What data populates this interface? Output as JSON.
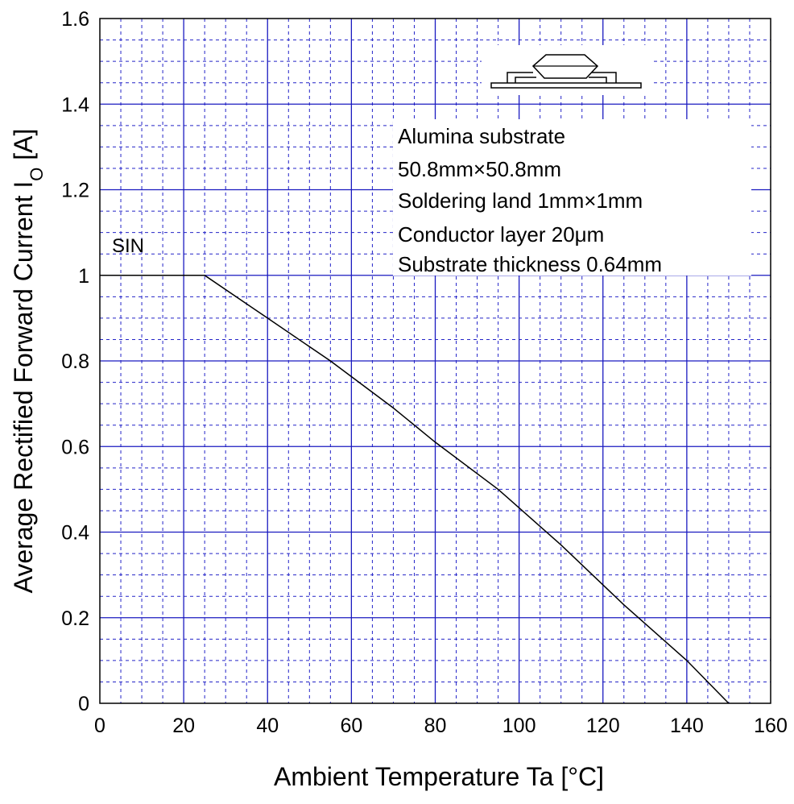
{
  "chart_data": {
    "type": "line",
    "title": "",
    "xlabel": "Ambient Temperature  Ta  [°C]",
    "ylabel_main": "Average Rectified Forward Current  I",
    "ylabel_sub": "O",
    "ylabel_unit": "  [A]",
    "xlim": [
      0,
      160
    ],
    "ylim": [
      0,
      1.6
    ],
    "x_ticks": [
      "0",
      "20",
      "40",
      "60",
      "80",
      "100",
      "120",
      "140",
      "160"
    ],
    "y_ticks": [
      "0",
      "0.2",
      "0.4",
      "0.6",
      "0.8",
      "1",
      "1.2",
      "1.4",
      "1.6"
    ],
    "grid": true,
    "series": [
      {
        "name": "SIN",
        "x": [
          0,
          25,
          40,
          55,
          70,
          80,
          95,
          110,
          125,
          140,
          150
        ],
        "y": [
          1.0,
          1.0,
          0.9,
          0.8,
          0.69,
          0.61,
          0.5,
          0.37,
          0.23,
          0.1,
          0.0
        ]
      }
    ],
    "annotations": [
      "Alumina substrate",
      "50.8mm×50.8mm",
      "Soldering land 1mm×1mm",
      "Conductor layer 20μm",
      "Substrate thickness 0.64mm"
    ],
    "package_icon": "surface-mount-package-icon"
  }
}
